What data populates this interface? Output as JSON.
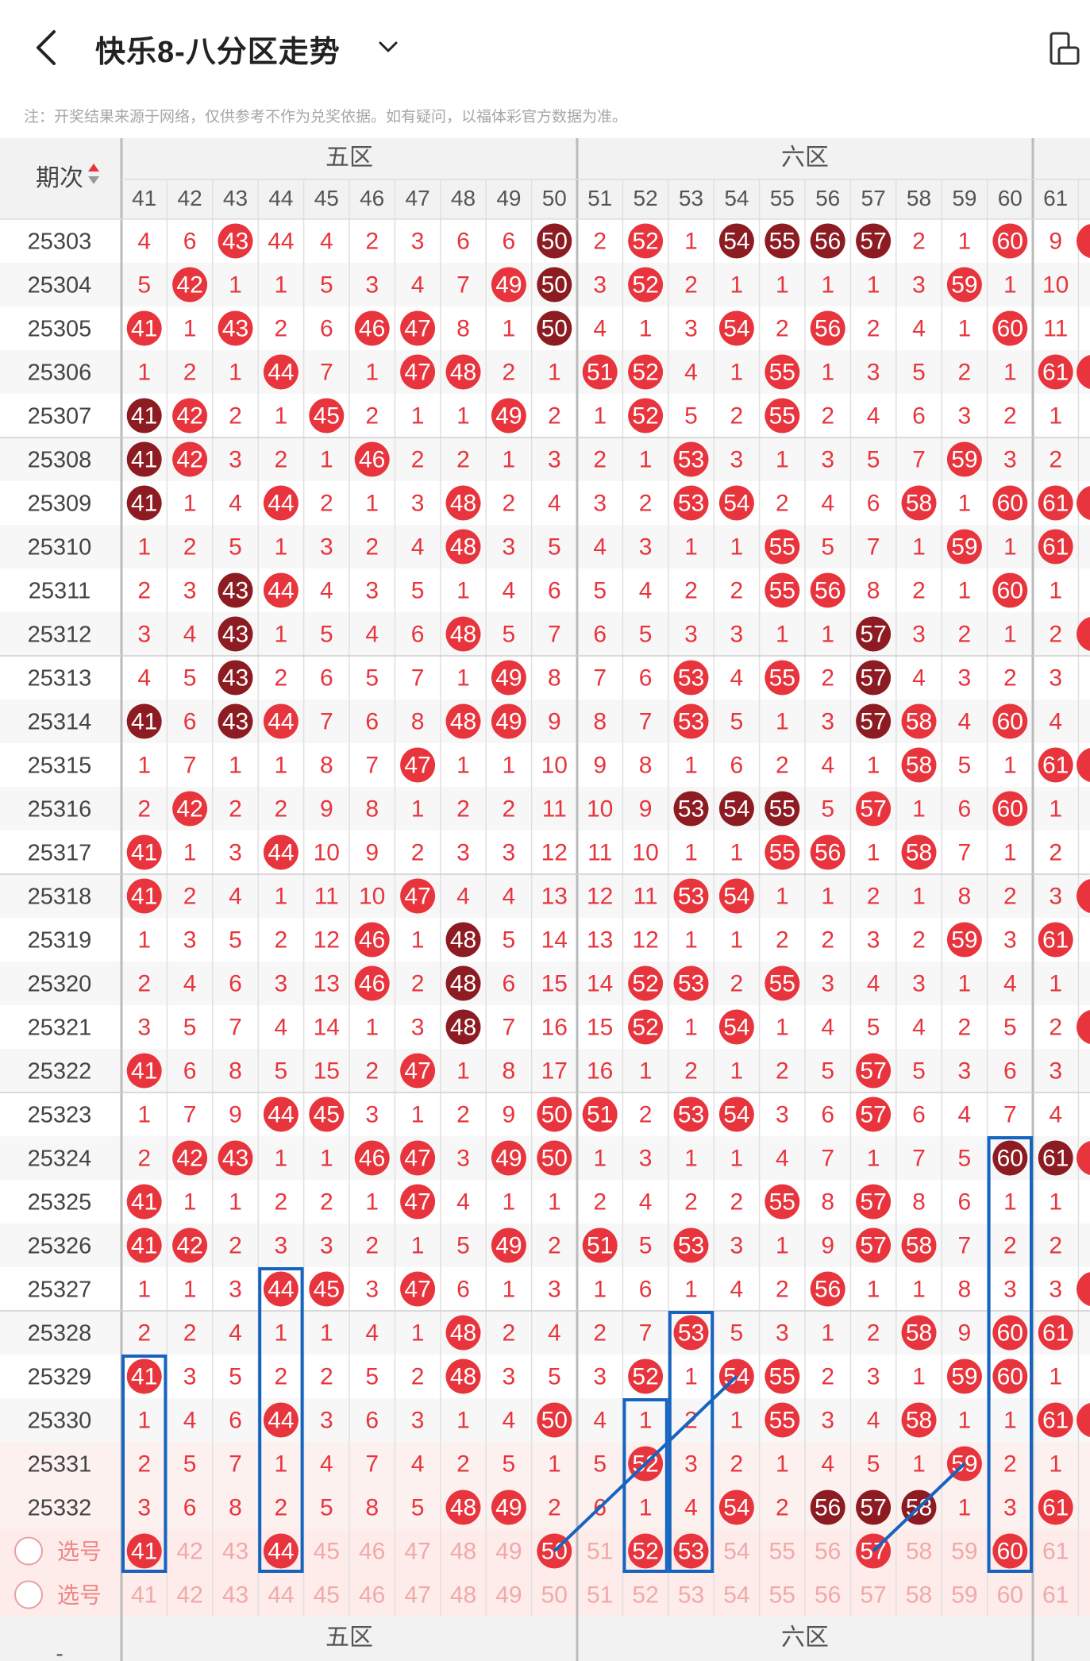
{
  "header": {
    "title": "快乐8-八分区走势",
    "back_icon": "chevron-left-icon",
    "dropdown_icon": "chevron-down-icon",
    "device_icon": "device-rotate-icon"
  },
  "notice": "注：开奖结果来源于网络，仅供参考不作为兑奖依据。如有疑问，以福体彩官方数据为准。",
  "table": {
    "period_header": "期次",
    "zones": [
      "五区",
      "六区"
    ],
    "columns": [
      41,
      42,
      43,
      44,
      45,
      46,
      47,
      48,
      49,
      50,
      51,
      52,
      53,
      54,
      55,
      56,
      57,
      58,
      59,
      60,
      61
    ],
    "partial_col_values": [
      null,
      null,
      null,
      null,
      null,
      null,
      null,
      null,
      null,
      null,
      null,
      null,
      null,
      null,
      null,
      null,
      null,
      null,
      null,
      null,
      null,
      null,
      null,
      null,
      null,
      null,
      null,
      null,
      null,
      null
    ],
    "rows": [
      {
        "period": "25303",
        "cells": [
          4,
          6,
          "H",
          44,
          4,
          2,
          3,
          6,
          6,
          "D",
          2,
          "H",
          1,
          "D",
          "D",
          "D",
          "D",
          2,
          1,
          "H",
          9
        ]
      },
      {
        "period": "25304",
        "cells": [
          5,
          "H",
          1,
          1,
          5,
          3,
          4,
          7,
          "H",
          "D",
          3,
          "H",
          2,
          1,
          1,
          1,
          1,
          3,
          "H",
          1,
          10
        ]
      },
      {
        "period": "25305",
        "cells": [
          "H",
          1,
          "H",
          2,
          6,
          "H",
          "H",
          8,
          1,
          "D",
          4,
          1,
          3,
          "H",
          2,
          "H",
          2,
          4,
          1,
          "H",
          11
        ]
      },
      {
        "period": "25306",
        "cells": [
          1,
          2,
          1,
          "H",
          7,
          1,
          "H",
          "H",
          2,
          1,
          "H",
          "H",
          4,
          1,
          "H",
          1,
          3,
          5,
          2,
          1,
          "H"
        ]
      },
      {
        "period": "25307",
        "cells": [
          "D",
          "H",
          2,
          1,
          "H",
          2,
          1,
          1,
          "H",
          2,
          1,
          "H",
          5,
          2,
          "H",
          2,
          4,
          6,
          3,
          2,
          1
        ]
      },
      {
        "period": "25308",
        "cells": [
          "D",
          "H",
          3,
          2,
          1,
          "H",
          2,
          2,
          1,
          3,
          2,
          1,
          "H",
          3,
          1,
          3,
          5,
          7,
          "H",
          3,
          2
        ]
      },
      {
        "period": "25309",
        "cells": [
          "D",
          1,
          4,
          "H",
          2,
          1,
          3,
          "H",
          2,
          4,
          3,
          2,
          "H",
          "H",
          2,
          4,
          6,
          "H",
          1,
          "H",
          "H"
        ]
      },
      {
        "period": "25310",
        "cells": [
          1,
          2,
          5,
          1,
          3,
          2,
          4,
          "H",
          3,
          5,
          4,
          3,
          1,
          1,
          "H",
          5,
          7,
          1,
          "H",
          1,
          "H"
        ]
      },
      {
        "period": "25311",
        "cells": [
          2,
          3,
          "D",
          "H",
          4,
          3,
          5,
          1,
          4,
          6,
          5,
          4,
          2,
          2,
          "H",
          "H",
          8,
          2,
          1,
          "H",
          1
        ]
      },
      {
        "period": "25312",
        "cells": [
          3,
          4,
          "D",
          1,
          5,
          4,
          6,
          "H",
          5,
          7,
          6,
          5,
          3,
          3,
          1,
          1,
          "D",
          3,
          2,
          1,
          2
        ]
      },
      {
        "period": "25313",
        "cells": [
          4,
          5,
          "D",
          2,
          6,
          5,
          7,
          1,
          "H",
          8,
          7,
          6,
          "H",
          4,
          "H",
          2,
          "D",
          4,
          3,
          2,
          3
        ]
      },
      {
        "period": "25314",
        "cells": [
          "D",
          6,
          "D",
          "H",
          7,
          6,
          8,
          "H",
          "H",
          9,
          8,
          7,
          "H",
          5,
          1,
          3,
          "D",
          "H",
          4,
          "H",
          4
        ]
      },
      {
        "period": "25315",
        "cells": [
          1,
          7,
          1,
          1,
          8,
          7,
          "H",
          1,
          1,
          10,
          9,
          8,
          1,
          6,
          2,
          4,
          1,
          "H",
          5,
          1,
          "H"
        ]
      },
      {
        "period": "25316",
        "cells": [
          2,
          "H",
          2,
          2,
          9,
          8,
          1,
          2,
          2,
          11,
          10,
          9,
          "D",
          "D",
          "D",
          5,
          "H",
          1,
          6,
          "H",
          1
        ]
      },
      {
        "period": "25317",
        "cells": [
          "H",
          1,
          3,
          "H",
          10,
          9,
          2,
          3,
          3,
          12,
          11,
          10,
          1,
          1,
          "H",
          "H",
          1,
          "H",
          7,
          1,
          2
        ]
      },
      {
        "period": "25318",
        "cells": [
          "H",
          2,
          4,
          1,
          11,
          10,
          "H",
          4,
          4,
          13,
          12,
          11,
          "H",
          "H",
          1,
          1,
          2,
          1,
          8,
          2,
          3
        ]
      },
      {
        "period": "25319",
        "cells": [
          1,
          3,
          5,
          2,
          12,
          "H",
          1,
          "D",
          5,
          14,
          13,
          12,
          1,
          1,
          2,
          2,
          3,
          2,
          "H",
          3,
          "H"
        ]
      },
      {
        "period": "25320",
        "cells": [
          2,
          4,
          6,
          3,
          13,
          "H",
          2,
          "D",
          6,
          15,
          14,
          "H",
          "H",
          2,
          "H",
          3,
          4,
          3,
          1,
          4,
          1
        ]
      },
      {
        "period": "25321",
        "cells": [
          3,
          5,
          7,
          4,
          14,
          1,
          3,
          "D",
          7,
          16,
          15,
          "H",
          1,
          "H",
          1,
          4,
          5,
          4,
          2,
          5,
          2
        ]
      },
      {
        "period": "25322",
        "cells": [
          "H",
          6,
          8,
          5,
          15,
          2,
          "H",
          1,
          8,
          17,
          16,
          1,
          2,
          1,
          2,
          5,
          "H",
          5,
          3,
          6,
          3
        ]
      },
      {
        "period": "25323",
        "cells": [
          1,
          7,
          9,
          "H",
          "H",
          3,
          1,
          2,
          9,
          "H",
          "H",
          2,
          "H",
          "H",
          3,
          6,
          "H",
          6,
          4,
          7,
          4
        ]
      },
      {
        "period": "25324",
        "cells": [
          2,
          "H",
          "H",
          1,
          1,
          "H",
          "H",
          3,
          "H",
          "H",
          1,
          3,
          1,
          1,
          4,
          7,
          1,
          7,
          5,
          "D",
          "D"
        ]
      },
      {
        "period": "25325",
        "cells": [
          "H",
          1,
          1,
          2,
          2,
          1,
          "H",
          4,
          1,
          1,
          2,
          4,
          2,
          2,
          "H",
          8,
          "H",
          8,
          6,
          1,
          1
        ]
      },
      {
        "period": "25326",
        "cells": [
          "H",
          "H",
          2,
          3,
          3,
          2,
          1,
          5,
          "H",
          2,
          "H",
          5,
          "H",
          3,
          1,
          9,
          "H",
          "H",
          7,
          2,
          2
        ]
      },
      {
        "period": "25327",
        "cells": [
          1,
          1,
          3,
          "H",
          "H",
          3,
          "H",
          6,
          1,
          3,
          1,
          6,
          1,
          4,
          2,
          "H",
          1,
          1,
          8,
          3,
          3
        ]
      },
      {
        "period": "25328",
        "cells": [
          2,
          2,
          4,
          1,
          1,
          4,
          1,
          "H",
          2,
          4,
          2,
          7,
          "H",
          5,
          3,
          1,
          2,
          "H",
          9,
          "H",
          "H"
        ]
      },
      {
        "period": "25329",
        "cells": [
          "H",
          3,
          5,
          2,
          2,
          5,
          2,
          "H",
          3,
          5,
          3,
          "H",
          1,
          "H",
          "H",
          2,
          3,
          1,
          "H",
          "H",
          1
        ]
      },
      {
        "period": "25330",
        "cells": [
          1,
          4,
          6,
          "H",
          3,
          6,
          3,
          1,
          4,
          "H",
          4,
          1,
          2,
          1,
          "H",
          3,
          4,
          "H",
          1,
          1,
          "H"
        ]
      },
      {
        "period": "25331",
        "cells": [
          2,
          5,
          7,
          1,
          4,
          7,
          4,
          2,
          5,
          1,
          5,
          "H",
          3,
          2,
          1,
          4,
          5,
          1,
          "H",
          2,
          1
        ]
      },
      {
        "period": "25332",
        "cells": [
          3,
          6,
          8,
          2,
          5,
          8,
          5,
          "H",
          "H",
          2,
          6,
          1,
          4,
          "H",
          2,
          "D",
          "D",
          "D",
          1,
          3,
          "H"
        ]
      }
    ],
    "select_rows": [
      {
        "label": "选号",
        "selected": [
          41,
          44,
          50,
          52,
          53,
          57,
          60
        ]
      },
      {
        "label": "选号",
        "selected": []
      }
    ],
    "footer_zones": [
      "五区",
      "六区"
    ],
    "footer_period": "-",
    "colors": {
      "hit": "#e8353d",
      "hot": "#8c1b22",
      "miss_text": "#e8353d",
      "line": "#1565c0",
      "header_bg": "#f2f2f2",
      "select_bg": "#fdecea",
      "select_text": "#f1a9a9"
    }
  }
}
